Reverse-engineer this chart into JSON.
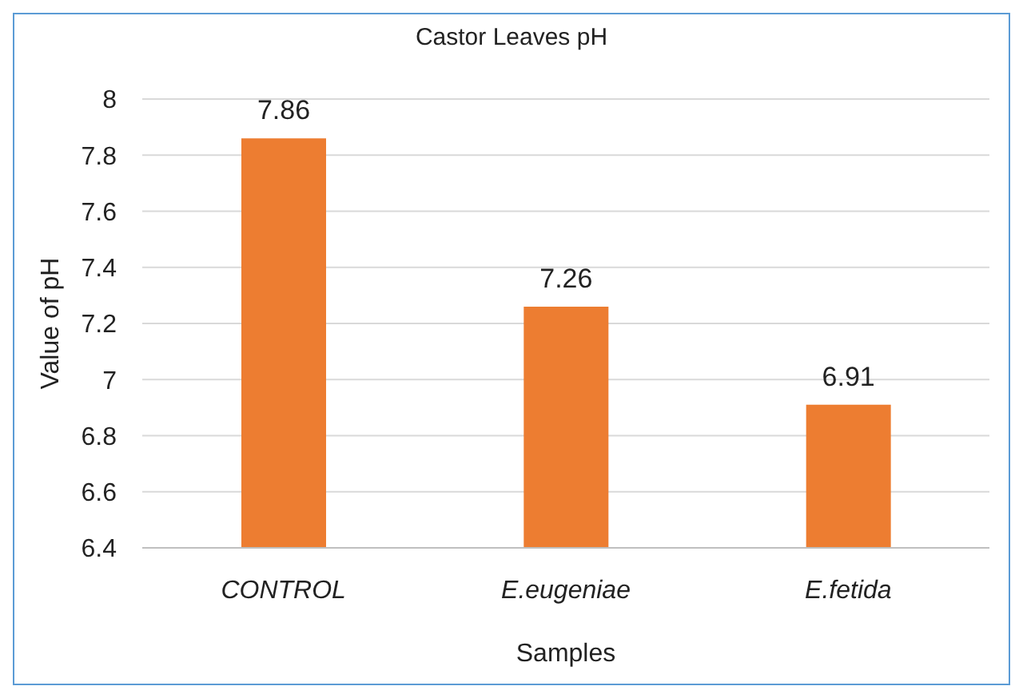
{
  "chart_data": {
    "type": "bar",
    "title": "Castor Leaves pH",
    "xlabel": "Samples",
    "ylabel": "Value of pH",
    "categories": [
      "CONTROL",
      "E.eugeniae",
      "E.fetida"
    ],
    "values": [
      7.86,
      7.26,
      6.91
    ],
    "color": "#ed7d31",
    "ylim": [
      6.4,
      8
    ],
    "yticks": [
      6.4,
      6.6,
      6.8,
      7,
      7.2,
      7.4,
      7.6,
      7.8,
      8
    ],
    "grid": "y",
    "data_labels": true,
    "legend": false
  }
}
